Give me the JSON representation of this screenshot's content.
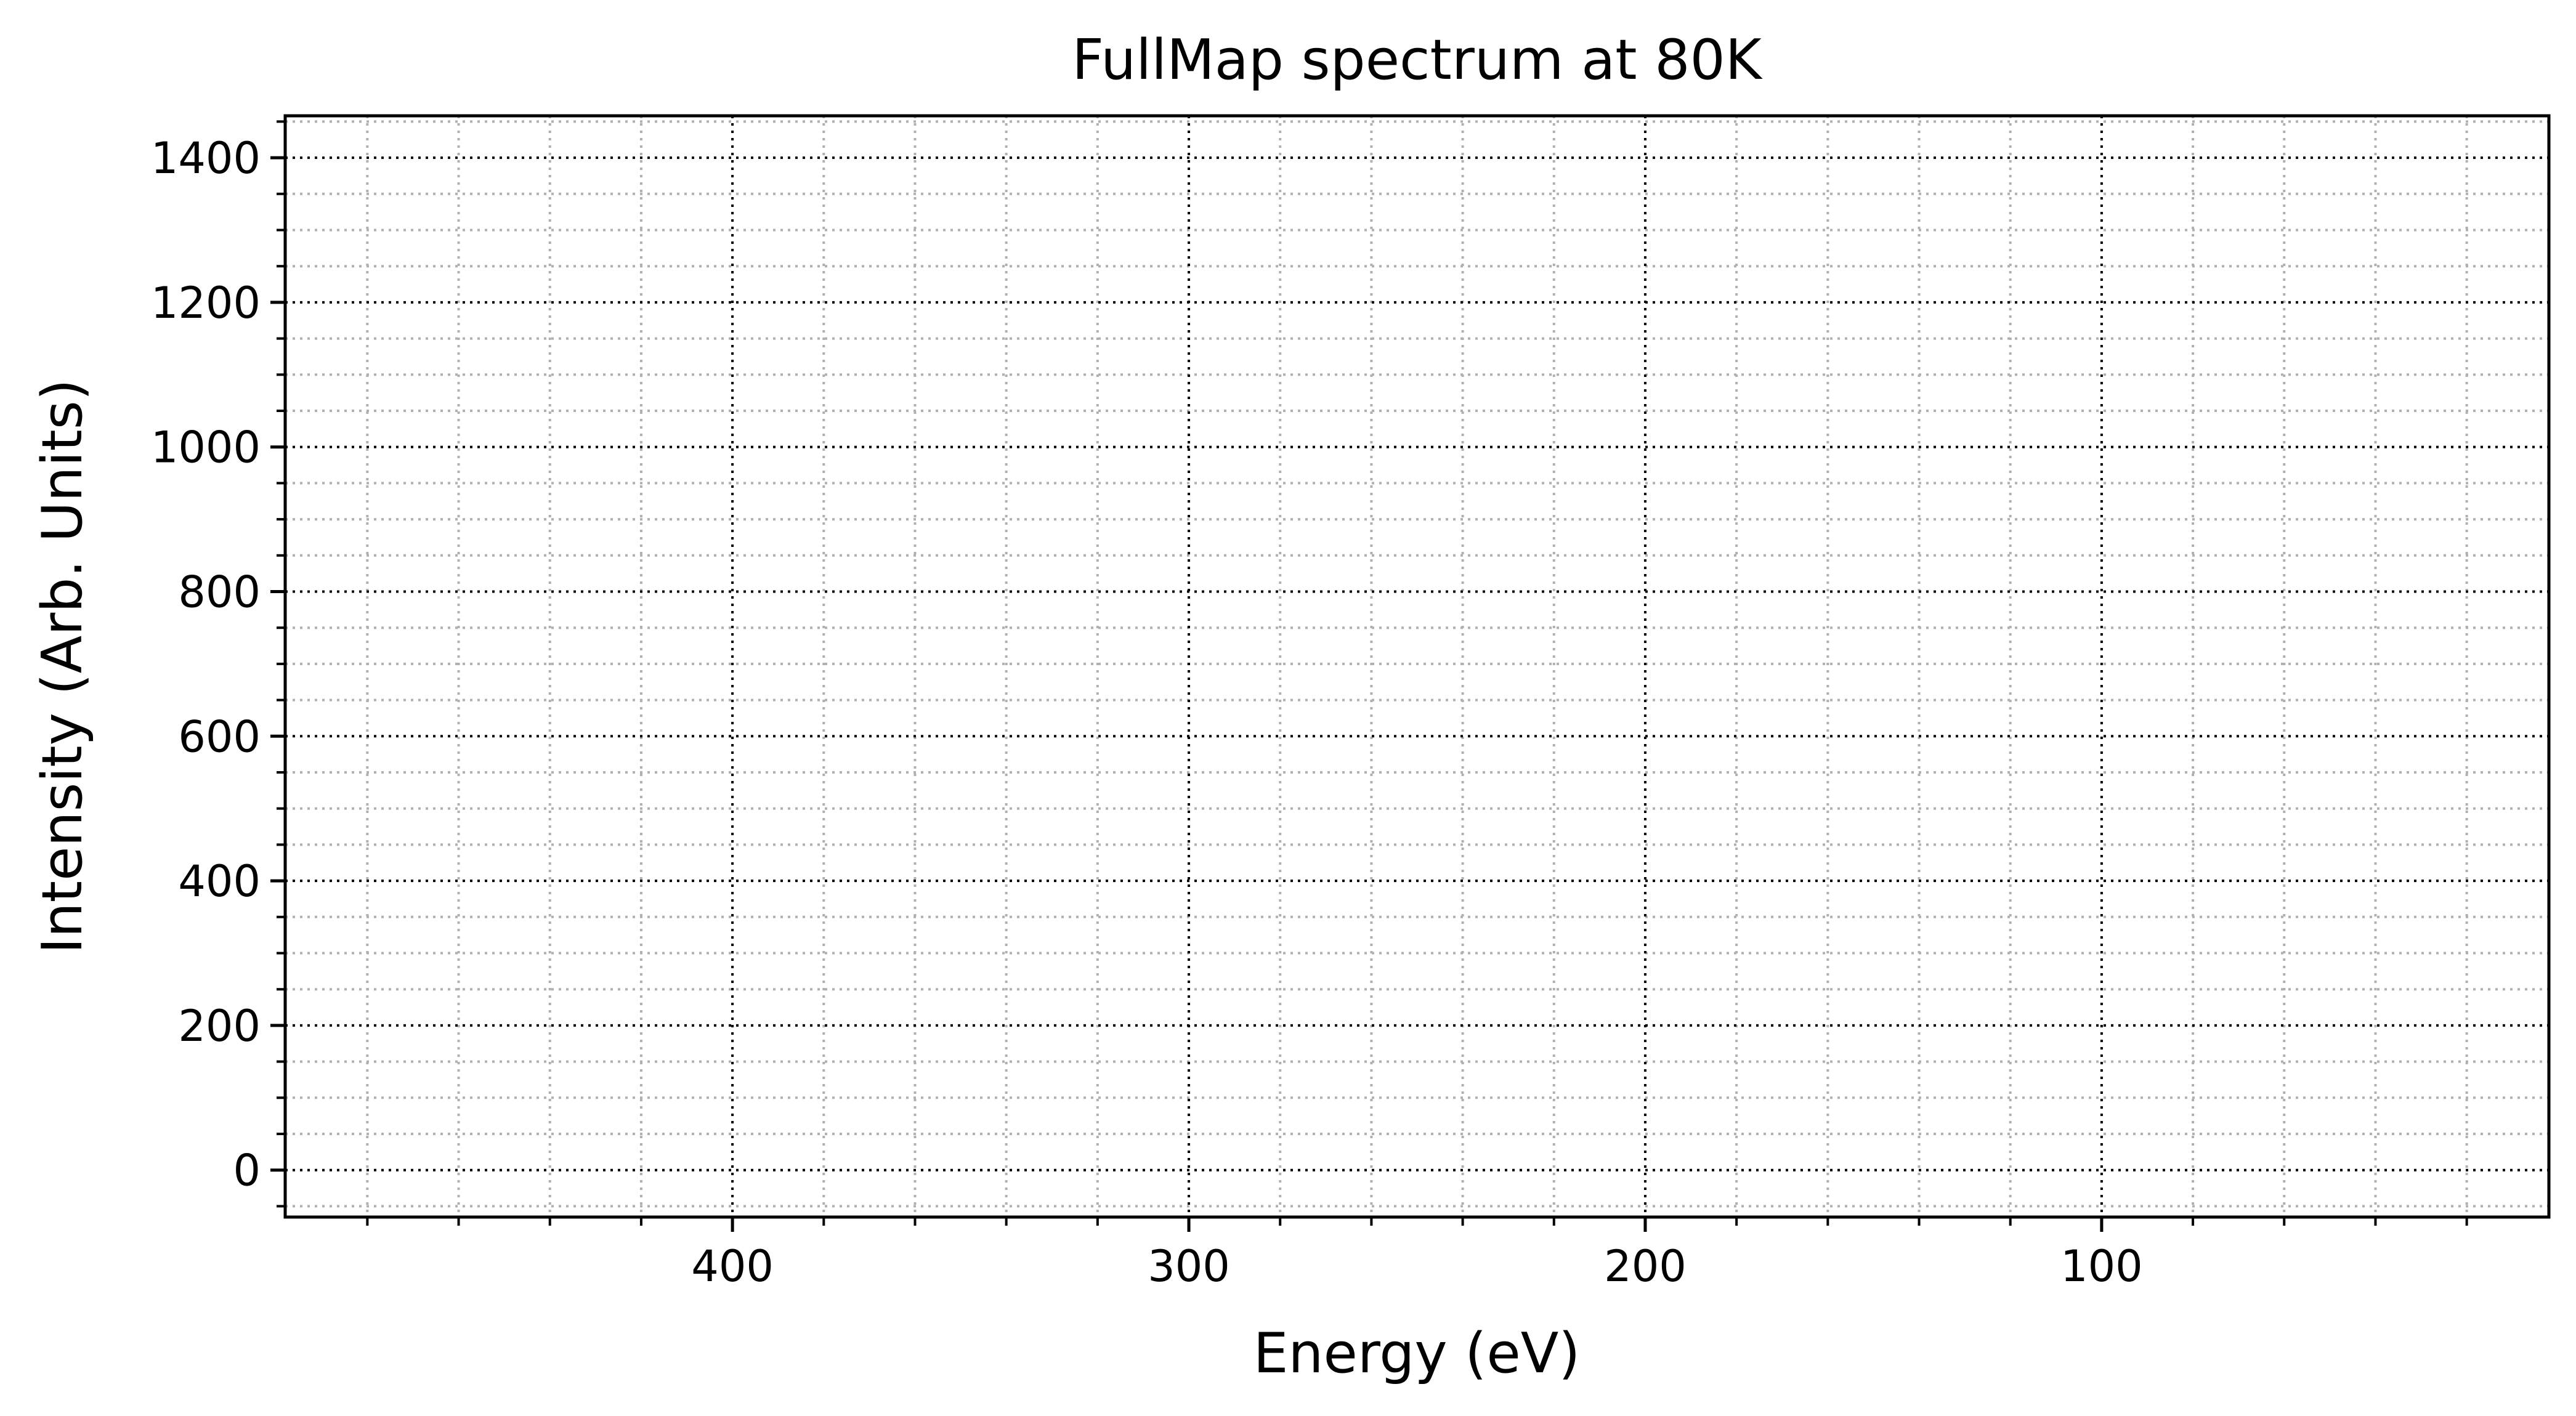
{
  "chart_data": {
    "type": "line",
    "title": "FullMap spectrum at 80K",
    "xlabel": "Energy (eV)",
    "ylabel": "Intensity (Arb. Units)",
    "x_inverted": true,
    "xlim": [
      498,
      2
    ],
    "ylim": [
      -65,
      1458
    ],
    "x_ticks": [
      400,
      300,
      200,
      100
    ],
    "x_tick_labels": [
      "400",
      "300",
      "200",
      "100"
    ],
    "x_minor_step": 20,
    "y_ticks": [
      0,
      200,
      400,
      600,
      800,
      1000,
      1200,
      1400
    ],
    "y_tick_labels": [
      "0",
      "200",
      "400",
      "600",
      "800",
      "1000",
      "1200",
      "1400"
    ],
    "y_minor_step": 50,
    "grid": true,
    "grid_major_color": "#000000",
    "grid_minor_color": "#b0b0b0",
    "series": []
  }
}
